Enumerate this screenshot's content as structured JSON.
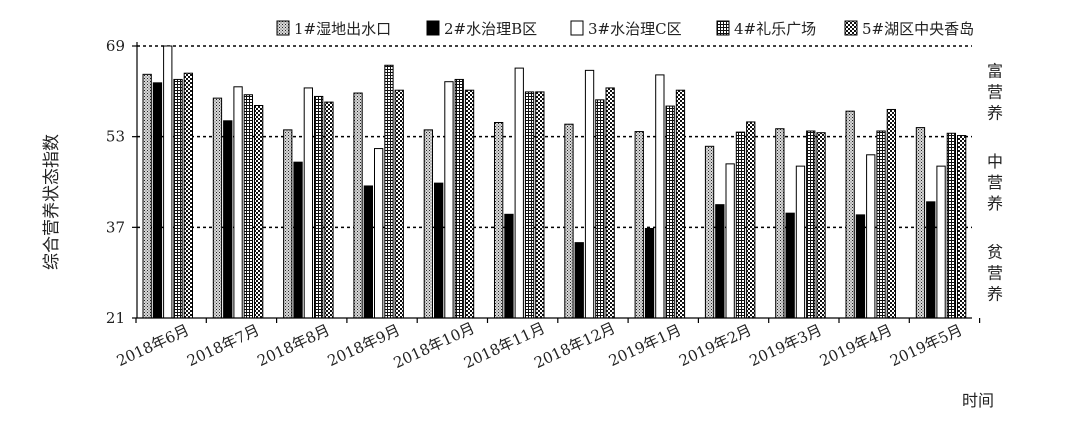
{
  "chart_data": {
    "type": "bar",
    "ylabel": "综合营养状态指数",
    "xlabel": "时间",
    "ylim": [
      21,
      69
    ],
    "yticks": [
      "21",
      "37",
      "53",
      "69"
    ],
    "categories": [
      "2018年6月",
      "2018年7月",
      "2018年8月",
      "2018年9月",
      "2018年10月",
      "2018年11月",
      "2018年12月",
      "2019年1月",
      "2019年2月",
      "2019年3月",
      "2019年4月",
      "2019年5月"
    ],
    "series": [
      {
        "name": "1#湿地出水口",
        "fill": "dots",
        "values": [
          64,
          59.8,
          54.2,
          60.7,
          54.2,
          55.5,
          55.2,
          53.9,
          51.3,
          54.4,
          57.5,
          54.6
        ]
      },
      {
        "name": "2#水治理B区",
        "fill": "black",
        "values": [
          62.5,
          55.8,
          48.5,
          44.3,
          44.8,
          39.3,
          34.3,
          36.8,
          41,
          39.5,
          39.2,
          41.5
        ]
      },
      {
        "name": "3#水治理C区",
        "fill": "white",
        "values": [
          69.2,
          61.8,
          61.6,
          50.9,
          62.7,
          65.1,
          64.7,
          63.9,
          48.2,
          47.8,
          49.8,
          47.8
        ]
      },
      {
        "name": "4#礼乐广场",
        "fill": "grid",
        "values": [
          63.1,
          60.4,
          60.1,
          65.6,
          63.1,
          60.9,
          59.5,
          58.4,
          53.8,
          54,
          54,
          53.6
        ]
      },
      {
        "name": "5#湖区中央香岛",
        "fill": "check",
        "values": [
          64.2,
          58.5,
          59.1,
          61.2,
          61.2,
          60.9,
          61.6,
          61.2,
          55.6,
          53.7,
          57.8,
          53.2
        ]
      }
    ],
    "reference_lines": [
      {
        "value": 69
      },
      {
        "value": 53
      },
      {
        "value": 37
      }
    ],
    "zones": [
      {
        "label": "富营养",
        "from": 53,
        "to": 69
      },
      {
        "label": "中营养",
        "from": 37,
        "to": 53
      },
      {
        "label": "贫营养",
        "from": 21,
        "to": 37
      }
    ],
    "legend": "top-right",
    "grid": false
  }
}
